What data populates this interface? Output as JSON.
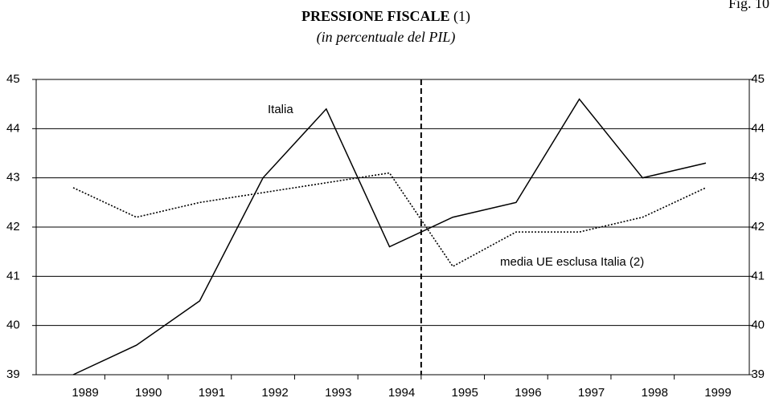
{
  "chart_data": {
    "type": "line",
    "fig_label": "Fig. 10",
    "title": "PRESSIONE FISCALE",
    "title_note": "(1)",
    "subtitle": "(in percentuale del PIL)",
    "categories": [
      "1989",
      "1990",
      "1991",
      "1992",
      "1993",
      "1994",
      "1995",
      "1996",
      "1997",
      "1998",
      "1999"
    ],
    "series": [
      {
        "name": "Italia",
        "color": "#000000",
        "dash": "solid",
        "values": [
          39.0,
          39.6,
          40.5,
          43.0,
          44.4,
          41.6,
          42.2,
          42.5,
          44.6,
          43.0,
          43.3
        ]
      },
      {
        "name": "media UE esclusa Italia (2)",
        "color": "#000000",
        "dash": "dotted",
        "values": [
          42.8,
          42.2,
          42.5,
          42.7,
          42.9,
          43.1,
          41.2,
          41.9,
          41.9,
          42.2,
          42.8
        ]
      }
    ],
    "ylim": [
      39,
      45
    ],
    "yticks": [
      39,
      40,
      41,
      42,
      43,
      44,
      45
    ],
    "y2lim": [
      39,
      45
    ],
    "y2ticks": [
      39,
      40,
      41,
      42,
      43,
      44,
      45
    ],
    "grid": true
  }
}
